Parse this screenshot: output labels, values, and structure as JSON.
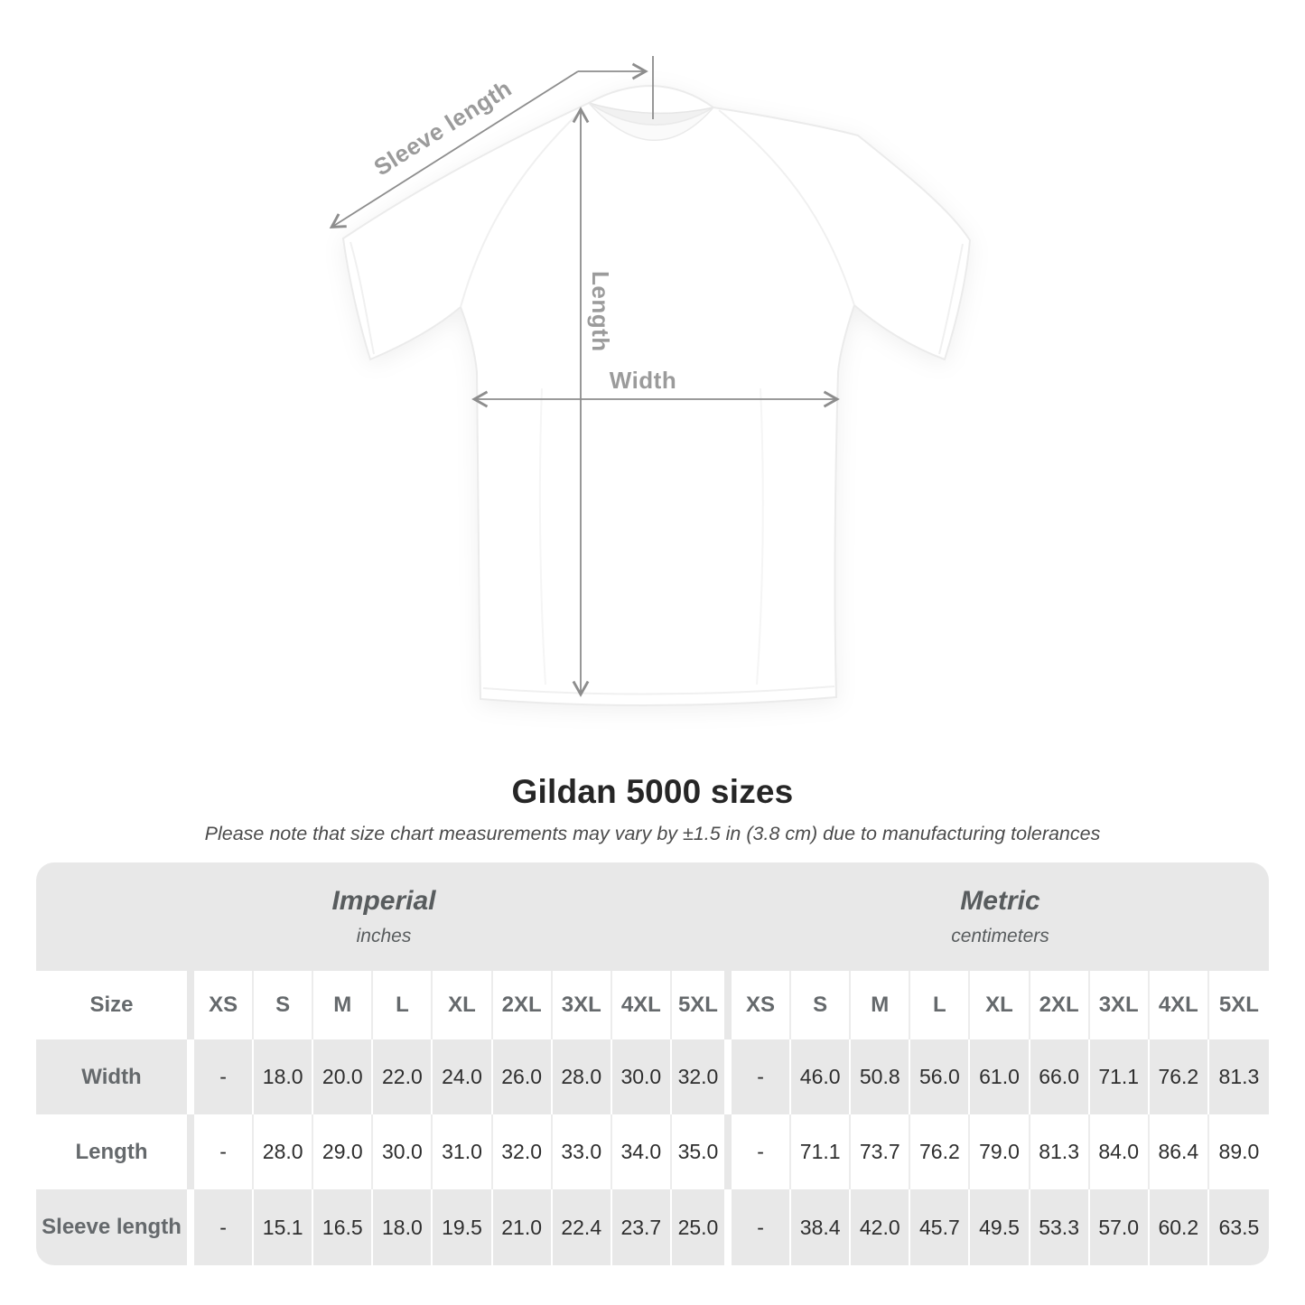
{
  "diagram": {
    "sleeve_length_label": "Sleeve length",
    "length_label": "Length",
    "width_label": "Width"
  },
  "title": "Gildan 5000 sizes",
  "subtitle": "Please note that size chart measurements may vary by ±1.5 in (3.8 cm) due to manufacturing tolerances",
  "table": {
    "size_header": "Size",
    "sections": {
      "imperial": {
        "name": "Imperial",
        "unit": "inches"
      },
      "metric": {
        "name": "Metric",
        "unit": "centimeters"
      }
    },
    "columns": [
      "XS",
      "S",
      "M",
      "L",
      "XL",
      "2XL",
      "3XL",
      "4XL",
      "5XL"
    ],
    "rows": [
      {
        "label": "Width",
        "imperial": [
          "-",
          "18.0",
          "20.0",
          "22.0",
          "24.0",
          "26.0",
          "28.0",
          "30.0",
          "32.0"
        ],
        "metric": [
          "-",
          "46.0",
          "50.8",
          "56.0",
          "61.0",
          "66.0",
          "71.1",
          "76.2",
          "81.3"
        ]
      },
      {
        "label": "Length",
        "imperial": [
          "-",
          "28.0",
          "29.0",
          "30.0",
          "31.0",
          "32.0",
          "33.0",
          "34.0",
          "35.0"
        ],
        "metric": [
          "-",
          "71.1",
          "73.7",
          "76.2",
          "79.0",
          "81.3",
          "84.0",
          "86.4",
          "89.0"
        ]
      },
      {
        "label": "Sleeve length",
        "imperial": [
          "-",
          "15.1",
          "16.5",
          "18.0",
          "19.5",
          "21.0",
          "22.4",
          "23.7",
          "25.0"
        ],
        "metric": [
          "-",
          "38.4",
          "42.0",
          "45.7",
          "49.5",
          "53.3",
          "57.0",
          "60.2",
          "63.5"
        ]
      }
    ]
  },
  "colors": {
    "stripe_gray": "#e8e8e8",
    "header_text": "#65696c",
    "value_text": "#2e2e2e",
    "dim_line": "#8d8d8d",
    "dim_label": "#9b9b9b"
  }
}
